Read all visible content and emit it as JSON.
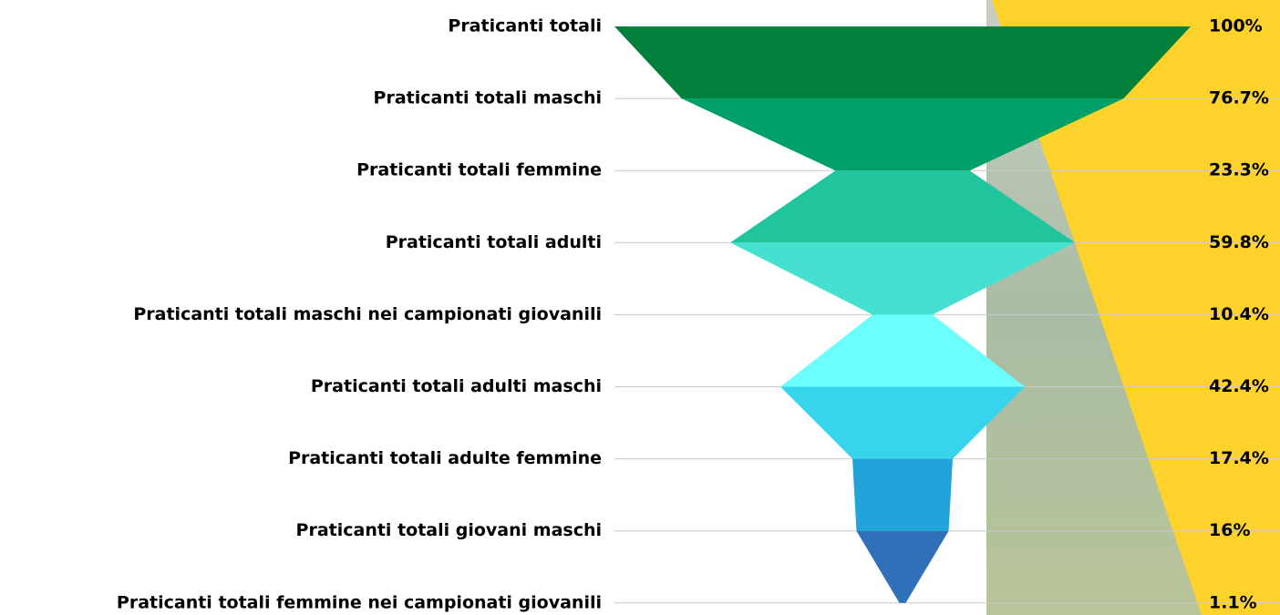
{
  "chart_data": {
    "type": "funnel",
    "categories": [
      "Praticanti totali",
      "Praticanti totali maschi",
      "Praticanti totali femmine",
      "Praticanti totali adulti",
      "Praticanti totali maschi nei campionati giovanili",
      "Praticanti totali adulti maschi",
      "Praticanti totali adulte femmine",
      "Praticanti totali giovani maschi",
      "Praticanti totali femmine nei campionati giovanili"
    ],
    "values": [
      100,
      76.7,
      23.3,
      59.8,
      10.4,
      42.4,
      17.4,
      16,
      1.1
    ],
    "value_labels": [
      "100%",
      "76.7%",
      "23.3%",
      "59.8%",
      "10.4%",
      "42.4%",
      "17.4%",
      "16%",
      "1.1%"
    ],
    "colors": [
      "#00803a",
      "#00a068",
      "#20c59e",
      "#45e0cf",
      "#6cfdfd",
      "#38d3ed",
      "#22a3da",
      "#3070b8"
    ]
  }
}
